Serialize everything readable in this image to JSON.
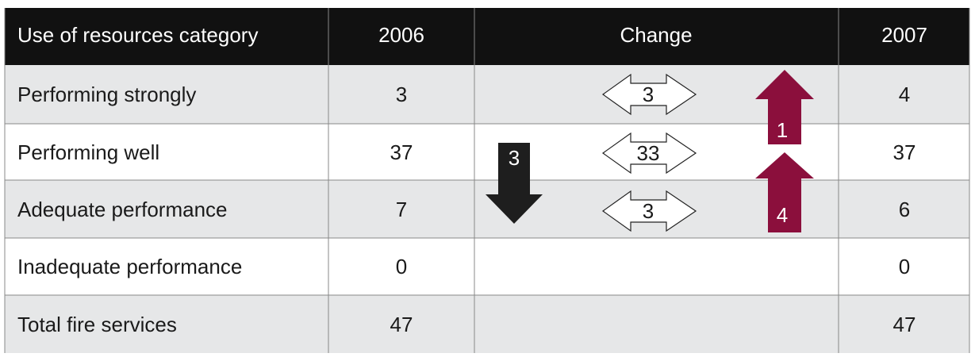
{
  "table": {
    "header": [
      "Use of resources category",
      "2006",
      "Change",
      "2007"
    ],
    "rows": [
      [
        "Performing strongly",
        3,
        4
      ],
      [
        "Performing well",
        37,
        37
      ],
      [
        "Adequate performance",
        7,
        6
      ],
      [
        "Inadequate performance",
        0,
        0
      ],
      [
        "Total fire services",
        47,
        47
      ]
    ]
  },
  "changes": {
    "unchanged": [
      3,
      33,
      3
    ],
    "down": [
      3
    ],
    "up": [
      1,
      4
    ]
  }
}
